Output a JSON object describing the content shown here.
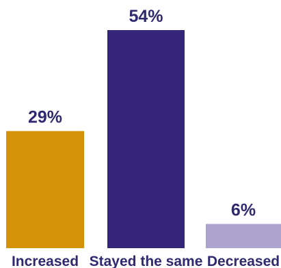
{
  "chart_data": {
    "type": "bar",
    "categories": [
      "Increased",
      "Stayed the same",
      "Decreased"
    ],
    "values": [
      29,
      54,
      6
    ],
    "value_labels": [
      "29%",
      "54%",
      "6%"
    ],
    "colors": [
      "#d4910a",
      "#35267a",
      "#ada3cf"
    ],
    "label_color": "#2f2a6f",
    "ylim": [
      0,
      54
    ],
    "grid": false,
    "legend": "none"
  }
}
